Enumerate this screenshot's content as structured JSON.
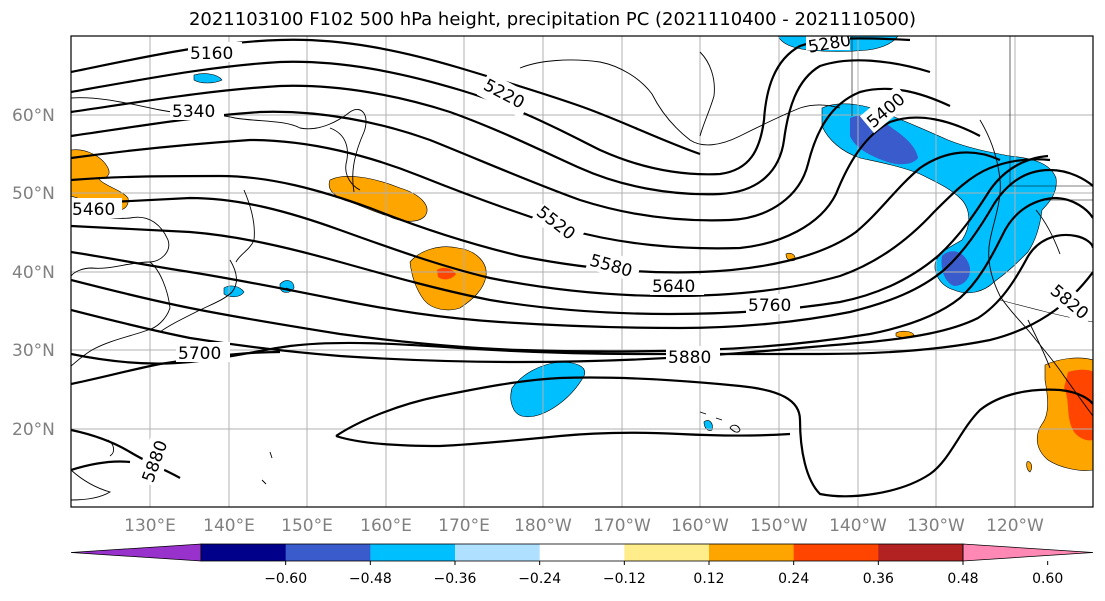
{
  "title": "2021103100 F102 500 hPa height, precipitation PC (2021110400 - 2021110500)",
  "lat_ticks": [
    "60°N",
    "50°N",
    "40°N",
    "30°N",
    "20°N"
  ],
  "lon_ticks": [
    "130°E",
    "140°E",
    "150°E",
    "160°E",
    "170°E",
    "180°W",
    "170°W",
    "160°W",
    "150°W",
    "140°W",
    "130°W",
    "120°W"
  ],
  "contour_labels": [
    "5160",
    "5220",
    "5340",
    "5460",
    "5520",
    "5580",
    "5640",
    "5760",
    "5700",
    "5880",
    "5880",
    "5820",
    "5280",
    "5400"
  ],
  "colorbar": {
    "ticks": [
      "−0.60",
      "−0.48",
      "−0.36",
      "−0.24",
      "−0.12",
      "0.12",
      "0.24",
      "0.36",
      "0.48",
      "0.60"
    ],
    "colors": [
      "#9932CC",
      "#00008B",
      "#3A5BCC",
      "#00BFFF",
      "#B0E0FF",
      "#FFFFFF",
      "#FFEC8B",
      "#FFA500",
      "#FF4500",
      "#B22222",
      "#FF88B4"
    ]
  },
  "map": {
    "lon_range": [
      "120°E",
      "110°W"
    ],
    "lat_range": [
      "10°N",
      "70°N"
    ],
    "gridlines": true
  }
}
